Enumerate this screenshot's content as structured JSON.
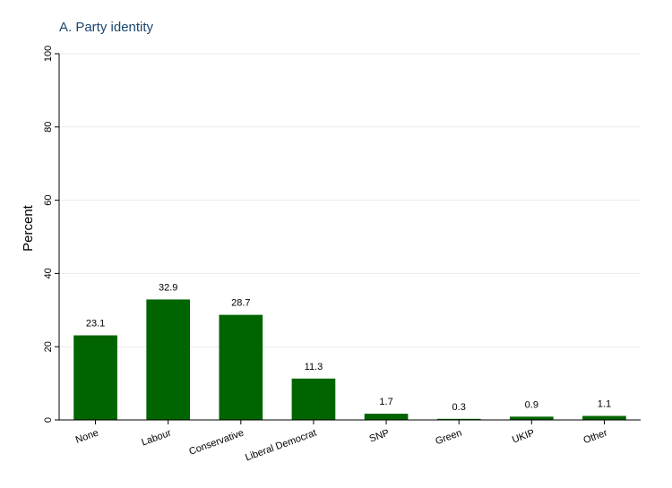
{
  "chart_data": {
    "type": "bar",
    "title": "A. Party identity",
    "ylabel": "Percent",
    "xlabel": "",
    "categories": [
      "None",
      "Labour",
      "Conservative",
      "Liberal Democrat",
      "SNP",
      "Green",
      "UKIP",
      "Other"
    ],
    "values": [
      23.1,
      32.9,
      28.7,
      11.3,
      1.7,
      0.3,
      0.9,
      1.1
    ],
    "value_labels": [
      "23.1",
      "32.9",
      "28.7",
      "11.3",
      "1.7",
      "0.3",
      "0.9",
      "1.1"
    ],
    "ylim": [
      0,
      100
    ],
    "yticks": [
      0,
      20,
      40,
      60,
      80,
      100
    ],
    "ytick_labels": [
      "0",
      "20",
      "40",
      "60",
      "80",
      "100"
    ],
    "grid": true,
    "bar_color": "#006400"
  }
}
